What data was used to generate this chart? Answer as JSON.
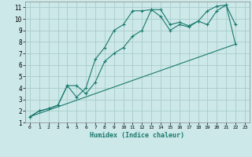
{
  "xlabel": "Humidex (Indice chaleur)",
  "ylabel": "",
  "xlim": [
    -0.5,
    23.5
  ],
  "ylim": [
    1,
    11.5
  ],
  "xticks": [
    0,
    1,
    2,
    3,
    4,
    5,
    6,
    7,
    8,
    9,
    10,
    11,
    12,
    13,
    14,
    15,
    16,
    17,
    18,
    19,
    20,
    21,
    22,
    23
  ],
  "yticks": [
    1,
    2,
    3,
    4,
    5,
    6,
    7,
    8,
    9,
    10,
    11
  ],
  "bg_color": "#cce8e8",
  "grid_color": "#aacccc",
  "line_color": "#1a7a6e",
  "line1_x": [
    0,
    1,
    2,
    3,
    4,
    5,
    6,
    7,
    8,
    9,
    10,
    11,
    12,
    13,
    14,
    15,
    16,
    17,
    18,
    19,
    20,
    21,
    22
  ],
  "line1_y": [
    1.5,
    2.0,
    2.2,
    2.5,
    4.2,
    3.2,
    4.0,
    6.5,
    7.5,
    9.0,
    9.5,
    10.7,
    10.7,
    10.8,
    10.2,
    9.0,
    9.5,
    9.3,
    9.8,
    10.7,
    11.1,
    11.2,
    9.5
  ],
  "line2_x": [
    0,
    1,
    2,
    3,
    4,
    5,
    6,
    7,
    8,
    9,
    10,
    11,
    12,
    13,
    14,
    15,
    16,
    17,
    18,
    19,
    20,
    21,
    22
  ],
  "line2_y": [
    1.5,
    2.0,
    2.2,
    2.5,
    4.2,
    4.2,
    3.5,
    4.5,
    6.3,
    7.0,
    7.5,
    8.5,
    9.0,
    10.8,
    10.8,
    9.5,
    9.7,
    9.4,
    9.8,
    9.5,
    10.7,
    11.2,
    7.8
  ],
  "line3_x": [
    0,
    22
  ],
  "line3_y": [
    1.5,
    7.8
  ]
}
